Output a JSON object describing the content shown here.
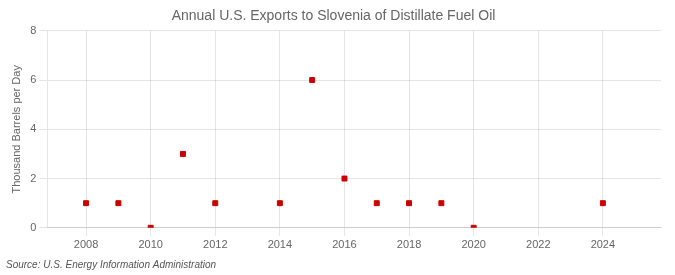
{
  "chart_data": {
    "type": "scatter",
    "title": "Annual U.S. Exports to Slovenia of Distillate Fuel Oil",
    "ylabel": "Thousand Barrels per Day",
    "source": "Source: U.S. Energy Information Administration",
    "x": [
      2008,
      2009,
      2010,
      2011,
      2012,
      2014,
      2015,
      2016,
      2017,
      2018,
      2019,
      2020,
      2024
    ],
    "values": [
      1,
      1,
      0,
      3,
      1,
      1,
      6,
      2,
      1,
      1,
      1,
      0,
      1
    ],
    "color": "#cc0000",
    "marker": "square",
    "xlim": [
      2006.8,
      2025.8
    ],
    "xticks": [
      2008,
      2010,
      2012,
      2014,
      2016,
      2018,
      2020,
      2022,
      2024
    ],
    "ylim": [
      0,
      8
    ],
    "yticks": [
      0,
      2,
      4,
      6,
      8
    ],
    "grid": true
  }
}
